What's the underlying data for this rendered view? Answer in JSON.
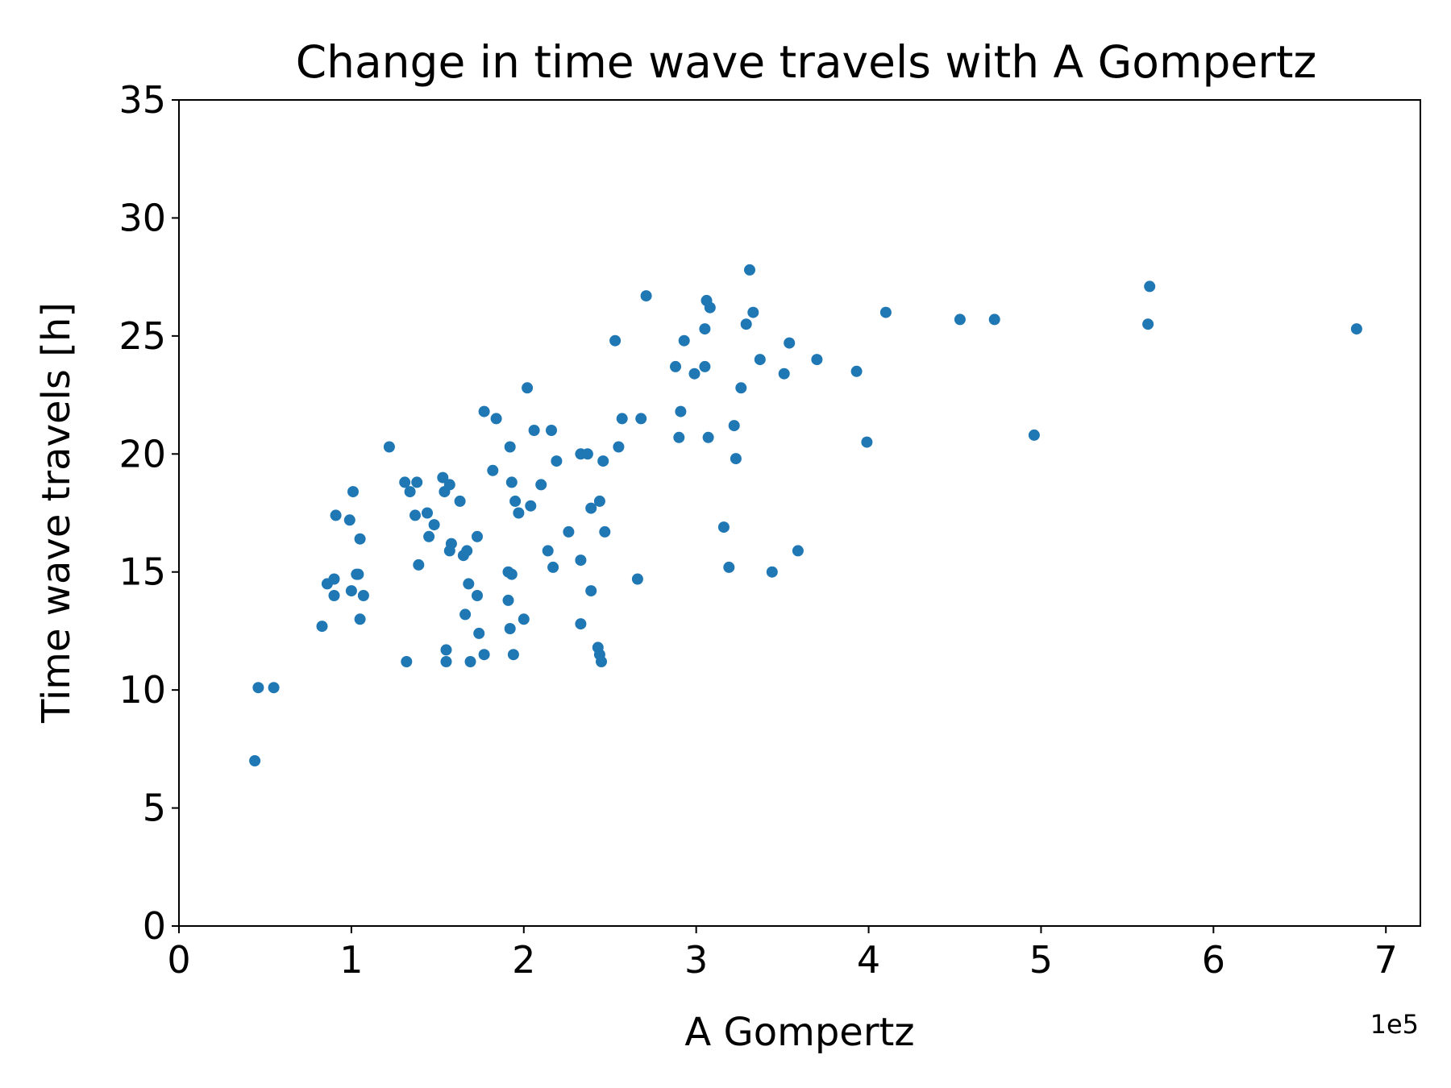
{
  "chart_data": {
    "type": "scatter",
    "title": "Change in time wave travels with A Gompertz",
    "xlabel": "A Gompertz",
    "ylabel": "Time wave travels [h]",
    "x_offset_label": "1e5",
    "xlim": [
      0,
      7.2
    ],
    "ylim": [
      0,
      35
    ],
    "x_unit_multiplier": 100000,
    "xticks": [
      0,
      1,
      2,
      3,
      4,
      5,
      6,
      7
    ],
    "xtick_labels": [
      "0",
      "1",
      "2",
      "3",
      "4",
      "5",
      "6",
      "7"
    ],
    "yticks": [
      0,
      5,
      10,
      15,
      20,
      25,
      30,
      35
    ],
    "ytick_labels": [
      "0",
      "5",
      "10",
      "15",
      "20",
      "25",
      "30",
      "35"
    ],
    "grid": false,
    "legend": "none",
    "marker_color": "#1f77b4",
    "series": [
      {
        "points": [
          [
            0.44,
            7.0
          ],
          [
            0.46,
            10.1
          ],
          [
            0.55,
            10.1
          ],
          [
            0.83,
            12.7
          ],
          [
            0.86,
            14.5
          ],
          [
            0.9,
            14.7
          ],
          [
            0.9,
            14.0
          ],
          [
            0.91,
            17.4
          ],
          [
            0.99,
            17.2
          ],
          [
            1.0,
            14.2
          ],
          [
            1.01,
            18.4
          ],
          [
            1.03,
            14.9
          ],
          [
            1.04,
            14.9
          ],
          [
            1.05,
            16.4
          ],
          [
            1.05,
            13.0
          ],
          [
            1.07,
            14.0
          ],
          [
            1.22,
            20.3
          ],
          [
            1.31,
            18.8
          ],
          [
            1.32,
            11.2
          ],
          [
            1.34,
            18.4
          ],
          [
            1.37,
            17.4
          ],
          [
            1.38,
            18.8
          ],
          [
            1.39,
            15.3
          ],
          [
            1.44,
            17.5
          ],
          [
            1.45,
            16.5
          ],
          [
            1.48,
            17.0
          ],
          [
            1.53,
            19.0
          ],
          [
            1.54,
            18.4
          ],
          [
            1.55,
            11.7
          ],
          [
            1.55,
            11.2
          ],
          [
            1.57,
            18.7
          ],
          [
            1.57,
            15.9
          ],
          [
            1.58,
            16.2
          ],
          [
            1.63,
            18.0
          ],
          [
            1.65,
            15.7
          ],
          [
            1.66,
            13.2
          ],
          [
            1.67,
            15.9
          ],
          [
            1.68,
            14.5
          ],
          [
            1.69,
            11.2
          ],
          [
            1.73,
            16.5
          ],
          [
            1.73,
            14.0
          ],
          [
            1.74,
            12.4
          ],
          [
            1.77,
            11.5
          ],
          [
            1.77,
            21.8
          ],
          [
            1.82,
            19.3
          ],
          [
            1.84,
            21.5
          ],
          [
            1.91,
            15.0
          ],
          [
            1.91,
            13.8
          ],
          [
            1.92,
            20.3
          ],
          [
            1.92,
            12.6
          ],
          [
            1.93,
            18.8
          ],
          [
            1.93,
            14.9
          ],
          [
            1.94,
            11.5
          ],
          [
            1.95,
            18.0
          ],
          [
            1.97,
            17.5
          ],
          [
            2.0,
            13.0
          ],
          [
            2.02,
            22.8
          ],
          [
            2.04,
            17.8
          ],
          [
            2.06,
            21.0
          ],
          [
            2.1,
            18.7
          ],
          [
            2.14,
            15.9
          ],
          [
            2.16,
            21.0
          ],
          [
            2.17,
            15.2
          ],
          [
            2.19,
            19.7
          ],
          [
            2.26,
            16.7
          ],
          [
            2.33,
            20.0
          ],
          [
            2.33,
            15.5
          ],
          [
            2.33,
            12.8
          ],
          [
            2.37,
            20.0
          ],
          [
            2.39,
            17.7
          ],
          [
            2.39,
            14.2
          ],
          [
            2.43,
            11.8
          ],
          [
            2.44,
            11.5
          ],
          [
            2.44,
            18.0
          ],
          [
            2.45,
            11.2
          ],
          [
            2.46,
            19.7
          ],
          [
            2.47,
            16.7
          ],
          [
            2.53,
            24.8
          ],
          [
            2.55,
            20.3
          ],
          [
            2.57,
            21.5
          ],
          [
            2.66,
            14.7
          ],
          [
            2.68,
            21.5
          ],
          [
            2.71,
            26.7
          ],
          [
            2.88,
            23.7
          ],
          [
            2.9,
            20.7
          ],
          [
            2.91,
            21.8
          ],
          [
            2.93,
            24.8
          ],
          [
            2.99,
            23.4
          ],
          [
            3.05,
            23.7
          ],
          [
            3.05,
            25.3
          ],
          [
            3.06,
            26.5
          ],
          [
            3.07,
            20.7
          ],
          [
            3.08,
            26.2
          ],
          [
            3.16,
            16.9
          ],
          [
            3.19,
            15.2
          ],
          [
            3.22,
            21.2
          ],
          [
            3.23,
            19.8
          ],
          [
            3.26,
            22.8
          ],
          [
            3.29,
            25.5
          ],
          [
            3.31,
            27.8
          ],
          [
            3.33,
            26.0
          ],
          [
            3.37,
            24.0
          ],
          [
            3.44,
            15.0
          ],
          [
            3.51,
            23.4
          ],
          [
            3.54,
            24.7
          ],
          [
            3.59,
            15.9
          ],
          [
            3.7,
            24.0
          ],
          [
            3.93,
            23.5
          ],
          [
            3.99,
            20.5
          ],
          [
            4.1,
            26.0
          ],
          [
            4.53,
            25.7
          ],
          [
            4.73,
            25.7
          ],
          [
            4.96,
            20.8
          ],
          [
            5.62,
            25.5
          ],
          [
            5.63,
            27.1
          ],
          [
            6.83,
            25.3
          ]
        ]
      }
    ]
  }
}
